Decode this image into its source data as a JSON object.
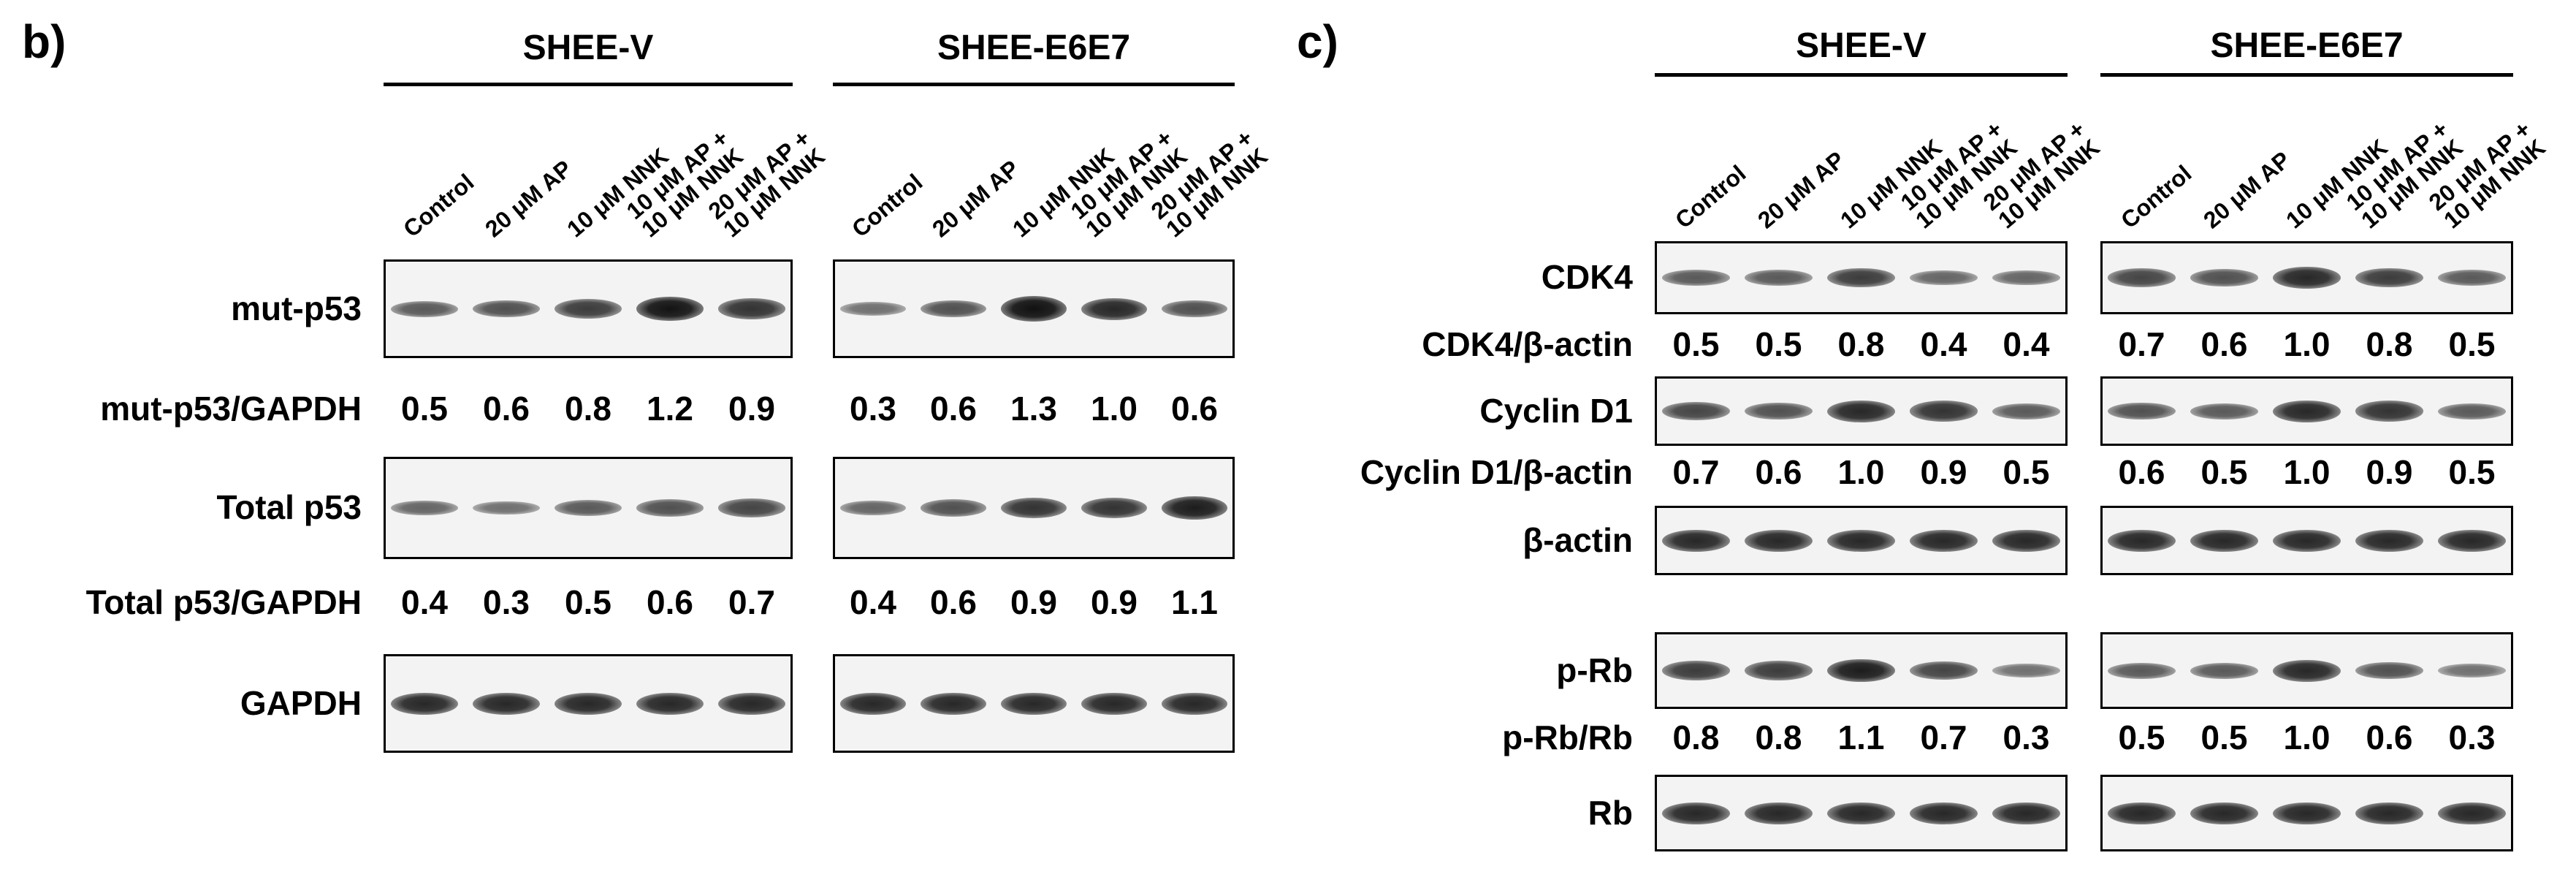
{
  "panels": [
    {
      "label": "b)",
      "groups": [
        {
          "title": "SHEE-V"
        },
        {
          "title": "SHEE-E6E7"
        }
      ],
      "lanes": [
        [
          "Control"
        ],
        [
          "20 μM AP"
        ],
        [
          "10 μM NNK"
        ],
        [
          "10 μM AP +",
          "10 μM NNK"
        ],
        [
          "20 μM AP +",
          "10 μM NNK"
        ]
      ],
      "rows": [
        {
          "type": "blot",
          "label": "mut-p53",
          "intensity": [
            [
              0.5,
              0.6,
              0.8,
              1.2,
              0.9
            ],
            [
              0.3,
              0.6,
              1.3,
              1.0,
              0.6
            ]
          ]
        },
        {
          "type": "ratio",
          "label": "mut-p53/GAPDH",
          "values": [
            [
              "0.5",
              "0.6",
              "0.8",
              "1.2",
              "0.9"
            ],
            [
              "0.3",
              "0.6",
              "1.3",
              "1.0",
              "0.6"
            ]
          ]
        },
        {
          "type": "blot",
          "label": "Total p53",
          "intensity": [
            [
              0.4,
              0.3,
              0.5,
              0.6,
              0.7
            ],
            [
              0.4,
              0.6,
              0.9,
              0.9,
              1.1
            ]
          ]
        },
        {
          "type": "ratio",
          "label": "Total p53/GAPDH",
          "values": [
            [
              "0.4",
              "0.3",
              "0.5",
              "0.6",
              "0.7"
            ],
            [
              "0.4",
              "0.6",
              "0.9",
              "0.9",
              "1.1"
            ]
          ]
        },
        {
          "type": "blot",
          "label": "GAPDH",
          "intensity": [
            [
              1,
              1,
              1,
              1,
              1
            ],
            [
              1,
              1,
              1,
              1,
              1
            ]
          ]
        }
      ]
    },
    {
      "label": "c)",
      "groups": [
        {
          "title": "SHEE-V"
        },
        {
          "title": "SHEE-E6E7"
        }
      ],
      "lanes": [
        [
          "Control"
        ],
        [
          "20 μM AP"
        ],
        [
          "10 μM NNK"
        ],
        [
          "10 μM AP +",
          "10 μM NNK"
        ],
        [
          "20 μM AP +",
          "10 μM NNK"
        ]
      ],
      "rows": [
        {
          "type": "blot",
          "label": "CDK4",
          "intensity": [
            [
              0.5,
              0.5,
              0.8,
              0.4,
              0.4
            ],
            [
              0.7,
              0.6,
              1.0,
              0.8,
              0.5
            ]
          ]
        },
        {
          "type": "ratio",
          "label": "CDK4/β-actin",
          "values": [
            [
              "0.5",
              "0.5",
              "0.8",
              "0.4",
              "0.4"
            ],
            [
              "0.7",
              "0.6",
              "1.0",
              "0.8",
              "0.5"
            ]
          ]
        },
        {
          "type": "blot",
          "label": "Cyclin D1",
          "intensity": [
            [
              0.7,
              0.6,
              1.0,
              0.9,
              0.5
            ],
            [
              0.6,
              0.5,
              1.0,
              0.9,
              0.5
            ]
          ]
        },
        {
          "type": "ratio",
          "label": "Cyclin D1/β-actin",
          "values": [
            [
              "0.7",
              "0.6",
              "1.0",
              "0.9",
              "0.5"
            ],
            [
              "0.6",
              "0.5",
              "1.0",
              "0.9",
              "0.5"
            ]
          ]
        },
        {
          "type": "blot",
          "label": "β-actin",
          "intensity": [
            [
              1,
              1,
              1,
              1,
              1
            ],
            [
              1,
              1,
              1,
              1,
              1
            ]
          ]
        },
        {
          "type": "blot",
          "label": "p-Rb",
          "intensity": [
            [
              0.8,
              0.8,
              1.1,
              0.7,
              0.3
            ],
            [
              0.5,
              0.5,
              1.0,
              0.6,
              0.3
            ]
          ]
        },
        {
          "type": "ratio",
          "label": "p-Rb/Rb",
          "values": [
            [
              "0.8",
              "0.8",
              "1.1",
              "0.7",
              "0.3"
            ],
            [
              "0.5",
              "0.5",
              "1.0",
              "0.6",
              "0.3"
            ]
          ]
        },
        {
          "type": "blot",
          "label": "Rb",
          "intensity": [
            [
              1,
              1,
              1,
              1,
              1
            ],
            [
              1,
              1,
              1,
              1,
              1
            ]
          ]
        }
      ]
    }
  ]
}
